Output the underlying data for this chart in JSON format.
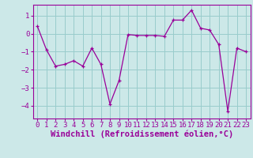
{
  "x": [
    0,
    1,
    2,
    3,
    4,
    5,
    6,
    7,
    8,
    9,
    10,
    11,
    12,
    13,
    14,
    15,
    16,
    17,
    18,
    19,
    20,
    21,
    22,
    23
  ],
  "y": [
    0.4,
    -0.9,
    -1.8,
    -1.7,
    -1.5,
    -1.8,
    -0.8,
    -1.7,
    -3.9,
    -2.6,
    -0.05,
    -0.1,
    -0.1,
    -0.1,
    -0.15,
    0.75,
    0.75,
    1.3,
    0.3,
    0.2,
    -0.6,
    -4.3,
    -0.8,
    -1.0
  ],
  "line_color": "#990099",
  "marker": "+",
  "markersize": 3,
  "linewidth": 0.9,
  "bg_color": "#cce8e8",
  "grid_color": "#99cccc",
  "xlabel": "Windchill (Refroidissement éolien,°C)",
  "xlabel_fontsize": 7.5,
  "tick_fontsize": 6.5,
  "ylim": [
    -4.7,
    1.6
  ],
  "yticks": [
    -4,
    -3,
    -2,
    -1,
    0,
    1
  ],
  "xlim": [
    -0.5,
    23.5
  ],
  "xticks": [
    0,
    1,
    2,
    3,
    4,
    5,
    6,
    7,
    8,
    9,
    10,
    11,
    12,
    13,
    14,
    15,
    16,
    17,
    18,
    19,
    20,
    21,
    22,
    23
  ],
  "tick_color": "#990099",
  "label_color": "#990099",
  "spine_color": "#990099"
}
